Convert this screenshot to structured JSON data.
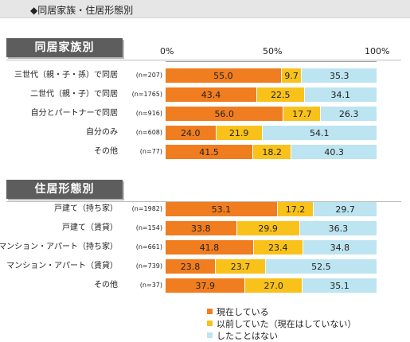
{
  "header": {
    "title": "◆同居家族・住居形態別"
  },
  "colors": {
    "current": "#f07d1f",
    "past": "#f8c21b",
    "never": "#bde4f1"
  },
  "chart_data": {
    "type": "bar",
    "stacked": true,
    "orientation": "horizontal",
    "xlim": [
      0,
      100
    ],
    "xticks": [
      "0%",
      "50%",
      "100%"
    ],
    "series_names": [
      "現在している",
      "以前していた（現在はしていない）",
      "したことはない"
    ],
    "groups": [
      {
        "title": "同居家族別",
        "rows": [
          {
            "label": "三世代（親・子・孫）で同居",
            "n": "(n=207)",
            "values": [
              55.0,
              9.7,
              35.3
            ],
            "texts": [
              "55.0",
              "9.7",
              "35.3"
            ]
          },
          {
            "label": "二世代（親・子）で同居",
            "n": "(n=1765)",
            "values": [
              43.4,
              22.5,
              34.1
            ],
            "texts": [
              "43.4",
              "22.5",
              "34.1"
            ]
          },
          {
            "label": "自分とパートナーで同居",
            "n": "(n=916)",
            "values": [
              56.0,
              17.7,
              26.3
            ],
            "texts": [
              "56.0",
              "17.7",
              "26.3"
            ]
          },
          {
            "label": "自分のみ",
            "n": "(n=608)",
            "values": [
              24.0,
              21.9,
              54.1
            ],
            "texts": [
              "24.0",
              "21.9",
              "54.1"
            ]
          },
          {
            "label": "その他",
            "n": "(n=77)",
            "values": [
              41.5,
              18.2,
              40.3
            ],
            "texts": [
              "41.5",
              "18.2",
              "40.3"
            ]
          }
        ]
      },
      {
        "title": "住居形態別",
        "rows": [
          {
            "label": "戸建て（持ち家）",
            "n": "(n=1982)",
            "values": [
              53.1,
              17.2,
              29.7
            ],
            "texts": [
              "53.1",
              "17.2",
              "29.7"
            ]
          },
          {
            "label": "戸建て（賃貸）",
            "n": "(n=154)",
            "values": [
              33.8,
              29.9,
              36.3
            ],
            "texts": [
              "33.8",
              "29.9",
              "36.3"
            ]
          },
          {
            "label": "マンション・アパート（持ち家）",
            "n": "(n=661)",
            "values": [
              41.8,
              23.4,
              34.8
            ],
            "texts": [
              "41.8",
              "23.4",
              "34.8"
            ]
          },
          {
            "label": "マンション・アパート（賃貸）",
            "n": "(n=739)",
            "values": [
              23.8,
              23.7,
              52.5
            ],
            "texts": [
              "23.8",
              "23.7",
              "52.5"
            ]
          },
          {
            "label": "その他",
            "n": "(n=37)",
            "values": [
              37.9,
              27.0,
              35.1
            ],
            "texts": [
              "37.9",
              "27.0",
              "35.1"
            ]
          }
        ]
      }
    ]
  }
}
